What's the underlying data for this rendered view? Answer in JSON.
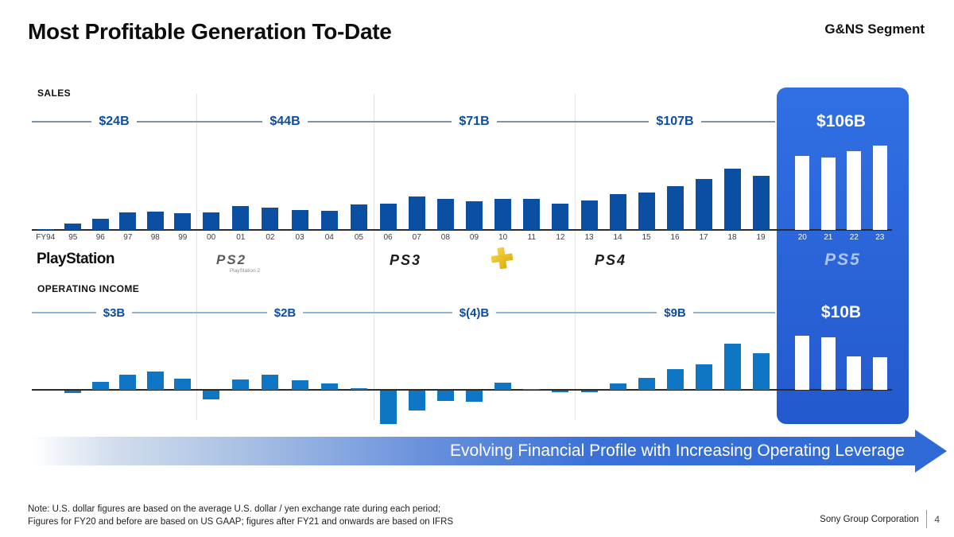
{
  "header": {
    "title": "Most Profitable Generation To-Date",
    "segment": "G&NS Segment"
  },
  "colors": {
    "sales_bar": "#0B4FA2",
    "oi_bar": "#0E76C4",
    "highlight_box_top": "#3070E4",
    "highlight_box_bottom": "#2459CE",
    "label_text": "#0C4DA2",
    "arrow_blue": "#2E69D6"
  },
  "chart_data": [
    {
      "type": "bar",
      "name": "sales",
      "title": "SALES",
      "ylim": [
        0,
        30
      ],
      "legend_position": "none",
      "grid": false,
      "groups": [
        {
          "console": "PlayStation",
          "total_label": "$24B",
          "highlight": false,
          "years": [
            "FY94",
            "95",
            "96",
            "97",
            "98",
            "99"
          ],
          "values": [
            0.2,
            2.1,
            3.8,
            6.0,
            6.4,
            5.8
          ]
        },
        {
          "console": "PlayStation 2",
          "total_label": "$44B",
          "highlight": false,
          "years": [
            "00",
            "01",
            "02",
            "03",
            "04",
            "05"
          ],
          "values": [
            6.0,
            8.3,
            7.7,
            6.9,
            6.6,
            8.8
          ]
        },
        {
          "console": "PlayStation 3",
          "total_label": "$71B",
          "highlight": false,
          "years": [
            "06",
            "07",
            "08",
            "09",
            "10",
            "11",
            "12"
          ],
          "values": [
            9.0,
            11.4,
            10.6,
            9.8,
            10.6,
            10.5,
            9.0
          ]
        },
        {
          "console": "PlayStation 4",
          "total_label": "$107B",
          "highlight": false,
          "years": [
            "13",
            "14",
            "15",
            "16",
            "17",
            "18",
            "19"
          ],
          "values": [
            10.2,
            12.3,
            12.9,
            15.0,
            17.4,
            20.9,
            18.5
          ]
        },
        {
          "console": "PlayStation 5",
          "total_label": "$106B",
          "highlight": true,
          "years": [
            "20",
            "21",
            "22",
            "23"
          ],
          "values": [
            25.3,
            24.9,
            26.9,
            29.0
          ]
        }
      ]
    },
    {
      "type": "bar",
      "name": "operating_income",
      "title": "OPERATING INCOME",
      "ylim": [
        -2.5,
        3.6
      ],
      "legend_position": "none",
      "grid": false,
      "groups": [
        {
          "console": "PlayStation",
          "total_label": "$3B",
          "highlight": false,
          "years": [
            "FY94",
            "95",
            "96",
            "97",
            "98",
            "99"
          ],
          "values": [
            0,
            -0.15,
            0.5,
            0.95,
            1.15,
            0.7
          ]
        },
        {
          "console": "PlayStation 2",
          "total_label": "$2B",
          "highlight": false,
          "years": [
            "00",
            "01",
            "02",
            "03",
            "04",
            "05"
          ],
          "values": [
            -0.55,
            0.65,
            0.95,
            0.6,
            0.4,
            0.1
          ]
        },
        {
          "console": "PlayStation 3",
          "total_label": "$(4)B",
          "highlight": false,
          "years": [
            "06",
            "07",
            "08",
            "09",
            "10",
            "11",
            "12"
          ],
          "values": [
            -2.1,
            -1.25,
            -0.65,
            -0.7,
            0.45,
            0.05,
            -0.1
          ]
        },
        {
          "console": "PlayStation 4",
          "total_label": "$9B",
          "highlight": false,
          "years": [
            "13",
            "14",
            "15",
            "16",
            "17",
            "18",
            "19"
          ],
          "values": [
            -0.1,
            0.4,
            0.75,
            1.3,
            1.6,
            2.9,
            2.3
          ]
        },
        {
          "console": "PlayStation 5",
          "total_label": "$10B",
          "highlight": true,
          "years": [
            "20",
            "21",
            "22",
            "23"
          ],
          "values": [
            3.4,
            3.3,
            2.1,
            2.05
          ]
        }
      ]
    }
  ],
  "logos": {
    "ps1": "PlayStation",
    "ps2": "PS2",
    "ps2_caption": "PlayStation 2",
    "ps3": "PS3",
    "ps_plus_icon": "playstation-plus-icon",
    "ps4": "PS4",
    "ps5": "PS5"
  },
  "arrow": {
    "text": "Evolving Financial Profile with Increasing Operating Leverage"
  },
  "note": {
    "line1": "Note: U.S. dollar figures are based on the average U.S. dollar / yen exchange rate during each period;",
    "line2": "Figures for FY20 and before are based on US GAAP; figures after FY21 and onwards are based on IFRS"
  },
  "footer": {
    "company": "Sony Group Corporation",
    "page": "4"
  }
}
